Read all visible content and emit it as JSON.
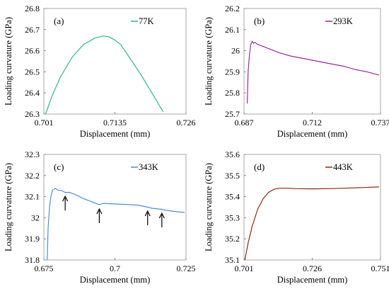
{
  "chart_data": [
    {
      "type": "line",
      "panel_label": "(a)",
      "xlabel": "Displacement (mm)",
      "ylabel": "Loading curvature (GPa)",
      "xlim": [
        0.701,
        0.726
      ],
      "ylim": [
        26.3,
        26.8
      ],
      "xticks": [
        "0.701",
        "0.7135",
        "0.726"
      ],
      "yticks": [
        "26.3",
        "26.4",
        "26.5",
        "26.6",
        "26.7",
        "26.8"
      ],
      "legend_position": "top-right",
      "grid": false,
      "series": [
        {
          "name": "77K",
          "color": "#2db88a",
          "x": [
            0.7013,
            0.7025,
            0.704,
            0.706,
            0.708,
            0.71,
            0.7115,
            0.7125,
            0.7135,
            0.7145,
            0.716,
            0.718,
            0.72,
            0.722
          ],
          "y": [
            26.3,
            26.39,
            26.48,
            26.57,
            26.63,
            26.66,
            26.67,
            26.665,
            26.65,
            26.63,
            26.57,
            26.49,
            26.4,
            26.31
          ]
        }
      ]
    },
    {
      "type": "line",
      "panel_label": "(b)",
      "xlabel": "Displacement (mm)",
      "ylabel": "Loading curvature (GPa)",
      "xlim": [
        0.687,
        0.737
      ],
      "ylim": [
        25.7,
        26.2
      ],
      "xticks": [
        "0.687",
        "0.712",
        "0.737"
      ],
      "yticks": [
        "25.7",
        "25.8",
        "25.9",
        "26",
        "26.1",
        "26.2"
      ],
      "legend_position": "top-right",
      "grid": false,
      "series": [
        {
          "name": "293K",
          "color": "#9a2a9a",
          "x": [
            0.6882,
            0.6885,
            0.689,
            0.6895,
            0.69,
            0.6905,
            0.691,
            0.692,
            0.694,
            0.697,
            0.7,
            0.704,
            0.708,
            0.712,
            0.716,
            0.72,
            0.724,
            0.728,
            0.732,
            0.7365
          ],
          "y": [
            25.75,
            25.9,
            25.98,
            26.03,
            26.045,
            26.035,
            26.04,
            26.03,
            26.02,
            26.005,
            25.99,
            25.975,
            25.965,
            25.955,
            25.945,
            25.935,
            25.925,
            25.91,
            25.9,
            25.885
          ]
        }
      ]
    },
    {
      "type": "line",
      "panel_label": "(c)",
      "xlabel": "Displacement (mm)",
      "ylabel": "Loading curvature (GPa)",
      "xlim": [
        0.675,
        0.725
      ],
      "ylim": [
        31.8,
        32.3
      ],
      "xticks": [
        "0.675",
        "0.7",
        "0.725"
      ],
      "yticks": [
        "31.8",
        "31.9",
        "32",
        "32.1",
        "32.2",
        "32.3"
      ],
      "legend_position": "top-right",
      "grid": false,
      "annotations": [
        {
          "type": "arrow",
          "x": 0.6825,
          "y": 32.115
        },
        {
          "type": "arrow",
          "x": 0.6945,
          "y": 32.055
        },
        {
          "type": "arrow",
          "x": 0.7115,
          "y": 32.045
        },
        {
          "type": "arrow",
          "x": 0.7165,
          "y": 32.035
        }
      ],
      "series": [
        {
          "name": "343K",
          "color": "#4a90d9",
          "x": [
            0.6762,
            0.6765,
            0.677,
            0.6775,
            0.678,
            0.679,
            0.68,
            0.681,
            0.6825,
            0.684,
            0.686,
            0.689,
            0.692,
            0.6945,
            0.696,
            0.7,
            0.704,
            0.708,
            0.7115,
            0.713,
            0.7165,
            0.718,
            0.721,
            0.7245
          ],
          "y": [
            31.8,
            31.95,
            32.05,
            32.1,
            32.13,
            32.14,
            32.13,
            32.13,
            32.12,
            32.12,
            32.11,
            32.09,
            32.075,
            32.062,
            32.068,
            32.065,
            32.063,
            32.06,
            32.05,
            32.045,
            32.04,
            32.035,
            32.03,
            32.025
          ]
        }
      ]
    },
    {
      "type": "line",
      "panel_label": "(d)",
      "xlabel": "Displacement (mm)",
      "ylabel": "Loading curvature (GPa)",
      "xlim": [
        0.701,
        0.751
      ],
      "ylim": [
        35.1,
        35.6
      ],
      "xticks": [
        "0.701",
        "0.726",
        "0.751"
      ],
      "yticks": [
        "35.1",
        "35.2",
        "35.3",
        "35.4",
        "35.5",
        "35.6"
      ],
      "legend_position": "top-right",
      "grid": false,
      "series": [
        {
          "name": "443K",
          "color": "#8b2a14",
          "x": [
            0.7013,
            0.7025,
            0.704,
            0.706,
            0.708,
            0.71,
            0.712,
            0.714,
            0.716,
            0.72,
            0.726,
            0.732,
            0.738,
            0.744,
            0.7505
          ],
          "y": [
            35.1,
            35.18,
            35.26,
            35.34,
            35.39,
            35.42,
            35.435,
            35.44,
            35.44,
            35.438,
            35.437,
            35.438,
            35.44,
            35.443,
            35.446
          ]
        }
      ]
    }
  ]
}
